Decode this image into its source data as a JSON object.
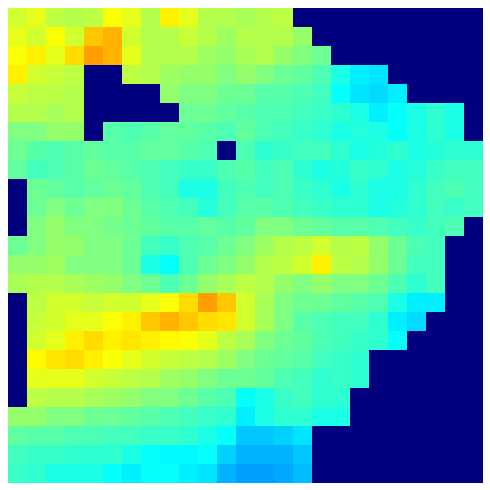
{
  "chart_data": {
    "type": "heatmap",
    "tick_labels": false,
    "zlim": [
      0,
      1
    ],
    "cells": [
      [
        0.58,
        0.6,
        0.56,
        0.55,
        0.56,
        0.62,
        0.6,
        0.55,
        0.64,
        0.6,
        0.55,
        0.55,
        0.54,
        0.55,
        0.56,
        0,
        0,
        0,
        0,
        0,
        0,
        0,
        0,
        0,
        0
      ],
      [
        0.6,
        0.58,
        0.62,
        0.58,
        0.68,
        0.7,
        0.58,
        0.55,
        0.55,
        0.57,
        0.55,
        0.53,
        0.55,
        0.55,
        0.55,
        0.52,
        0,
        0,
        0,
        0,
        0,
        0,
        0,
        0,
        0
      ],
      [
        0.62,
        0.64,
        0.6,
        0.66,
        0.72,
        0.7,
        0.6,
        0.55,
        0.55,
        0.55,
        0.53,
        0.52,
        0.54,
        0.55,
        0.52,
        0.5,
        0.48,
        0,
        0,
        0,
        0,
        0,
        0,
        0,
        0
      ],
      [
        0.64,
        0.58,
        0.57,
        0.56,
        0,
        0,
        0.56,
        0.55,
        0.53,
        0.52,
        0.52,
        0.5,
        0.52,
        0.5,
        0.48,
        0.47,
        0.45,
        0.4,
        0.36,
        0.35,
        0,
        0,
        0,
        0,
        0
      ],
      [
        0.57,
        0.56,
        0.56,
        0.55,
        0,
        0,
        0,
        0,
        0.52,
        0.5,
        0.5,
        0.48,
        0.48,
        0.46,
        0.46,
        0.45,
        0.44,
        0.38,
        0.35,
        0.34,
        0.36,
        0,
        0,
        0,
        0
      ],
      [
        0.55,
        0.55,
        0.54,
        0.55,
        0,
        0,
        0,
        0,
        0,
        0.48,
        0.48,
        0.47,
        0.46,
        0.45,
        0.45,
        0.44,
        0.43,
        0.42,
        0.4,
        0.36,
        0.38,
        0.4,
        0.42,
        0.4,
        0
      ],
      [
        0.5,
        0.5,
        0.52,
        0.52,
        0,
        0.46,
        0.45,
        0.46,
        0.47,
        0.47,
        0.46,
        0.45,
        0.47,
        0.45,
        0.44,
        0.43,
        0.42,
        0.4,
        0.41,
        0.4,
        0.38,
        0.4,
        0.42,
        0.4,
        0
      ],
      [
        0.48,
        0.46,
        0.45,
        0.46,
        0.47,
        0.46,
        0.46,
        0.47,
        0.47,
        0.46,
        0.45,
        0,
        0.45,
        0.42,
        0.43,
        0.44,
        0.44,
        0.42,
        0.4,
        0.41,
        0.42,
        0.4,
        0.41,
        0.42,
        0.42
      ],
      [
        0.47,
        0.44,
        0.45,
        0.46,
        0.48,
        0.47,
        0.46,
        0.45,
        0.44,
        0.43,
        0.43,
        0.45,
        0.46,
        0.44,
        0.45,
        0.42,
        0.4,
        0.41,
        0.43,
        0.42,
        0.4,
        0.41,
        0.43,
        0.44,
        0.44
      ],
      [
        0,
        0.48,
        0.47,
        0.46,
        0.47,
        0.48,
        0.47,
        0.45,
        0.44,
        0.4,
        0.4,
        0.44,
        0.45,
        0.44,
        0.45,
        0.43,
        0.42,
        0.4,
        0.42,
        0.4,
        0.4,
        0.42,
        0.44,
        0.45,
        0.44
      ],
      [
        0,
        0.48,
        0.5,
        0.48,
        0.5,
        0.5,
        0.48,
        0.46,
        0.45,
        0.44,
        0.41,
        0.44,
        0.46,
        0.46,
        0.45,
        0.44,
        0.43,
        0.42,
        0.42,
        0.4,
        0.41,
        0.42,
        0.44,
        0.43,
        0.44
      ],
      [
        0,
        0.5,
        0.52,
        0.5,
        0.5,
        0.49,
        0.48,
        0.47,
        0.46,
        0.46,
        0.47,
        0.46,
        0.47,
        0.5,
        0.5,
        0.48,
        0.47,
        0.46,
        0.46,
        0.45,
        0.44,
        0.43,
        0.44,
        0.45,
        0
      ],
      [
        0.48,
        0.5,
        0.52,
        0.52,
        0.5,
        0.5,
        0.48,
        0.44,
        0.43,
        0.45,
        0.46,
        0.48,
        0.5,
        0.53,
        0.55,
        0.56,
        0.58,
        0.55,
        0.56,
        0.52,
        0.48,
        0.45,
        0.44,
        0,
        0
      ],
      [
        0.52,
        0.52,
        0.53,
        0.5,
        0.5,
        0.5,
        0.48,
        0.4,
        0.38,
        0.45,
        0.48,
        0.5,
        0.52,
        0.55,
        0.56,
        0.58,
        0.64,
        0.56,
        0.55,
        0.52,
        0.48,
        0.44,
        0.44,
        0,
        0
      ],
      [
        0.54,
        0.55,
        0.55,
        0.54,
        0.53,
        0.52,
        0.5,
        0.48,
        0.45,
        0.48,
        0.52,
        0.54,
        0.56,
        0.55,
        0.52,
        0.5,
        0.52,
        0.5,
        0.5,
        0.48,
        0.45,
        0.42,
        0.44,
        0,
        0
      ],
      [
        0,
        0.56,
        0.58,
        0.58,
        0.57,
        0.58,
        0.58,
        0.6,
        0.62,
        0.66,
        0.72,
        0.68,
        0.58,
        0.54,
        0.5,
        0.48,
        0.48,
        0.47,
        0.46,
        0.45,
        0.4,
        0.36,
        0.36,
        0,
        0
      ],
      [
        0,
        0.57,
        0.58,
        0.6,
        0.6,
        0.62,
        0.64,
        0.68,
        0.7,
        0.68,
        0.66,
        0.65,
        0.58,
        0.54,
        0.5,
        0.46,
        0.45,
        0.44,
        0.44,
        0.42,
        0.36,
        0.34,
        0,
        0,
        0
      ],
      [
        0,
        0.58,
        0.6,
        0.64,
        0.66,
        0.64,
        0.65,
        0.64,
        0.63,
        0.62,
        0.6,
        0.56,
        0.54,
        0.5,
        0.48,
        0.47,
        0.45,
        0.44,
        0.43,
        0.42,
        0.38,
        0,
        0,
        0,
        0
      ],
      [
        0,
        0.63,
        0.65,
        0.66,
        0.64,
        0.62,
        0.6,
        0.58,
        0.57,
        0.56,
        0.55,
        0.53,
        0.5,
        0.48,
        0.47,
        0.46,
        0.44,
        0.43,
        0.42,
        0,
        0,
        0,
        0,
        0,
        0
      ],
      [
        0,
        0.6,
        0.6,
        0.6,
        0.58,
        0.57,
        0.56,
        0.55,
        0.53,
        0.52,
        0.5,
        0.48,
        0.48,
        0.47,
        0.45,
        0.44,
        0.42,
        0.43,
        0.42,
        0,
        0,
        0,
        0,
        0,
        0
      ],
      [
        0,
        0.56,
        0.55,
        0.55,
        0.54,
        0.53,
        0.52,
        0.5,
        0.5,
        0.48,
        0.46,
        0.45,
        0.38,
        0.4,
        0.43,
        0.44,
        0.42,
        0.42,
        0,
        0,
        0,
        0,
        0,
        0,
        0
      ],
      [
        0.52,
        0.52,
        0.5,
        0.5,
        0.48,
        0.48,
        0.47,
        0.46,
        0.45,
        0.44,
        0.43,
        0.42,
        0.36,
        0.4,
        0.42,
        0.42,
        0.4,
        0.4,
        0,
        0,
        0,
        0,
        0,
        0,
        0
      ],
      [
        0.47,
        0.46,
        0.46,
        0.45,
        0.45,
        0.44,
        0.44,
        0.43,
        0.43,
        0.42,
        0.4,
        0.38,
        0.32,
        0.32,
        0.33,
        0.35,
        0,
        0,
        0,
        0,
        0,
        0,
        0,
        0,
        0
      ],
      [
        0.44,
        0.43,
        0.43,
        0.42,
        0.42,
        0.42,
        0.4,
        0.38,
        0.37,
        0.37,
        0.38,
        0.33,
        0.3,
        0.3,
        0.3,
        0.32,
        0,
        0,
        0,
        0,
        0,
        0,
        0,
        0,
        0
      ],
      [
        0.43,
        0.42,
        0.4,
        0.4,
        0.4,
        0.38,
        0.36,
        0.38,
        0.38,
        0.36,
        0.35,
        0.3,
        0.28,
        0.28,
        0.29,
        0.31,
        0,
        0,
        0,
        0,
        0,
        0,
        0,
        0,
        0
      ]
    ]
  }
}
